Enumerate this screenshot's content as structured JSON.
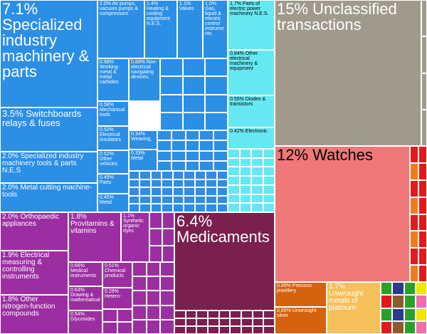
{
  "chart_data": {
    "type": "treemap",
    "title": "",
    "items": [
      {
        "key": "spec_machinery",
        "label": "7.1% Specialized industry machinery & parts",
        "value": 7.1,
        "color": "#2b8fe6"
      },
      {
        "key": "switchboards",
        "label": "3.5% Switchboards relays & fuses",
        "value": 3.5,
        "color": "#2b8fe6"
      },
      {
        "key": "spec_tools",
        "label": "2.0% Specialized industry machinery tools & parts N.E.S",
        "value": 2.0,
        "color": "#2b8fe6"
      },
      {
        "key": "metal_cutting",
        "label": "2.0% Metal cutting machine-tools",
        "value": 2.0,
        "color": "#2b8fe6"
      },
      {
        "key": "air_pumps",
        "label": "2.0% Air pumps, vacuum pumps & compressors",
        "value": 2.0,
        "color": "#2b8fe6"
      },
      {
        "key": "heating",
        "label": "1.4% Heating & cooling equipment N.E.S.",
        "value": 1.4,
        "color": "#2b8fe6"
      },
      {
        "key": "valves",
        "label": "1.1% Valves",
        "value": 1.1,
        "color": "#2b8fe6"
      },
      {
        "key": "gas_ctrl",
        "label": "1.0% Gas, liquid & electric control instruments",
        "value": 1.0,
        "color": "#2b8fe6"
      },
      {
        "key": "metal_carbides",
        "label": "0.98% Working-metal & metal carbides",
        "value": 0.98,
        "color": "#2b8fe6"
      },
      {
        "key": "nav_devices",
        "label": "0.89% Non-electrical navigating devices,",
        "value": 0.89,
        "color": "#2b8fe6"
      },
      {
        "key": "mech_tools",
        "label": "0.58% Mechanical tools",
        "value": 0.58,
        "color": "#2b8fe6"
      },
      {
        "key": "elec_insulators",
        "label": "0.52% Electrical insulators",
        "value": 0.52,
        "color": "#2b8fe6"
      },
      {
        "key": "other_vehicles",
        "label": "0.52% Other vehicles",
        "value": 0.52,
        "color": "#2b8fe6"
      },
      {
        "key": "parts",
        "label": "0.45% Parts",
        "value": 0.45,
        "color": "#2b8fe6"
      },
      {
        "key": "metal_small",
        "label": "0.45% Metal",
        "value": 0.45,
        "color": "#2b8fe6"
      },
      {
        "key": "weaving",
        "label": "0.34% Weaving,",
        "value": 0.34,
        "color": "#2b8fe6"
      },
      {
        "key": "metal2",
        "label": "0.33% Metal",
        "value": 0.33,
        "color": "#2b8fe6"
      },
      {
        "key": "elec_power_parts",
        "label": "1.7% Parts of electric power machinery N.E.S.",
        "value": 1.7,
        "color": "#66e8f2"
      },
      {
        "key": "other_elec",
        "label": "0.84% Other electrical machinery & equipment",
        "value": 0.84,
        "color": "#66e8f2"
      },
      {
        "key": "diodes",
        "label": "0.55% Diodes & transistors",
        "value": 0.55,
        "color": "#66e8f2"
      },
      {
        "key": "electronic",
        "label": "0.42% Electronic",
        "value": 0.42,
        "color": "#66e8f2"
      },
      {
        "key": "unclassified",
        "label": "15% Unclassified transactions",
        "value": 15,
        "color": "#a09a8c"
      },
      {
        "key": "watches",
        "label": "12% Watches",
        "value": 12,
        "color": "#f07878"
      },
      {
        "key": "orthopaedic",
        "label": "2.0% Orthopaedic appliances",
        "value": 2.0,
        "color": "#9b2fa1"
      },
      {
        "key": "elec_measuring",
        "label": "1.9% Electrical measuring & controlling instruments",
        "value": 1.9,
        "color": "#9b2fa1"
      },
      {
        "key": "nitrogen",
        "label": "1.8% Other nitrogen-function compounds",
        "value": 1.8,
        "color": "#9b2fa1"
      },
      {
        "key": "provitamins",
        "label": "1.8% Provitamins & vitamins",
        "value": 1.8,
        "color": "#9b2fa1"
      },
      {
        "key": "synthetic_dyes",
        "label": "1.1% Synthetic organic dyes",
        "value": 1.1,
        "color": "#9b2fa1"
      },
      {
        "key": "medical_instr",
        "label": "0.66% Medical instruments",
        "value": 0.66,
        "color": "#9b2fa1"
      },
      {
        "key": "chemical_products",
        "label": "0.51% Chemical products",
        "value": 0.51,
        "color": "#9b2fa1"
      },
      {
        "key": "drawing",
        "label": "0.63% Drawing & mathematical",
        "value": 0.63,
        "color": "#9b2fa1"
      },
      {
        "key": "hetero",
        "label": "0.29% Hetero-",
        "value": 0.29,
        "color": "#9b2fa1"
      },
      {
        "key": "glycosides",
        "label": "0.54% Glycosides",
        "value": 0.54,
        "color": "#9b2fa1"
      },
      {
        "key": "medicaments",
        "label": "6.4% Medicaments",
        "value": 6.4,
        "color": "#7a1f4e"
      },
      {
        "key": "precious_jewellery",
        "label": "0.89% Precious jewellery",
        "value": 0.89,
        "color": "#d4620f"
      },
      {
        "key": "unwrought_silver",
        "label": "0.89% Unwrought silver",
        "value": 0.89,
        "color": "#d4620f"
      },
      {
        "key": "platinum",
        "label": "1.7% Unwrought metals of platinum",
        "value": 1.7,
        "color": "#f6c05a"
      }
    ],
    "filler_colors": {
      "blue": "#2b8fe6",
      "cyan": "#66e8f2",
      "purple": "#9b2fa1",
      "maroon": "#7a1f4e",
      "red": "#e31a1c",
      "orange": "#f07c1c",
      "green": "#2aa02a",
      "yellow": "#f2e600",
      "navy": "#2a3a8c",
      "brown": "#8c5a2b",
      "pink": "#f06fa8"
    }
  }
}
